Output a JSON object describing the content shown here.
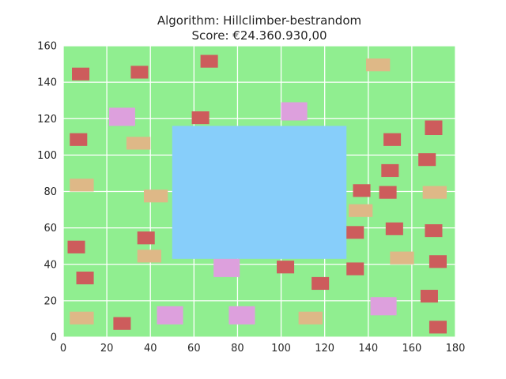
{
  "chart_data": {
    "type": "scatter",
    "title": "Algorithm: Hillclimber-bestrandom",
    "subtitle": "Score: €24.360.930,00",
    "xlabel": "",
    "ylabel": "",
    "xlim": [
      0,
      180
    ],
    "ylim": [
      0,
      160
    ],
    "xticks": [
      0,
      20,
      40,
      60,
      80,
      100,
      120,
      140,
      160,
      180
    ],
    "yticks": [
      0,
      20,
      40,
      60,
      80,
      100,
      120,
      140,
      160
    ],
    "grid": true,
    "colors": {
      "background": "#90EE90",
      "water": "#87CEFA",
      "red": "#CD5C5C",
      "tan": "#DEB887",
      "pink": "#DDA0DD"
    },
    "water": [
      {
        "x0": 50,
        "y0": 43,
        "x1": 130,
        "y1": 116
      }
    ],
    "houses": [
      {
        "type": "red",
        "x0": 4,
        "y0": 141,
        "x1": 12,
        "y1": 148
      },
      {
        "type": "red",
        "x0": 31,
        "y0": 142,
        "x1": 39,
        "y1": 149
      },
      {
        "type": "red",
        "x0": 63,
        "y0": 148,
        "x1": 71,
        "y1": 155
      },
      {
        "type": "tan",
        "x0": 139,
        "y0": 146,
        "x1": 150,
        "y1": 153
      },
      {
        "type": "pink",
        "x0": 21,
        "y0": 116,
        "x1": 33,
        "y1": 126
      },
      {
        "type": "red",
        "x0": 59,
        "y0": 117,
        "x1": 67,
        "y1": 124
      },
      {
        "type": "pink",
        "x0": 100,
        "y0": 119,
        "x1": 112,
        "y1": 129
      },
      {
        "type": "red",
        "x0": 166,
        "y0": 111,
        "x1": 174,
        "y1": 119
      },
      {
        "type": "red",
        "x0": 3,
        "y0": 105,
        "x1": 11,
        "y1": 112
      },
      {
        "type": "tan",
        "x0": 29,
        "y0": 103,
        "x1": 40,
        "y1": 110
      },
      {
        "type": "red",
        "x0": 147,
        "y0": 105,
        "x1": 155,
        "y1": 112
      },
      {
        "type": "red",
        "x0": 163,
        "y0": 94,
        "x1": 171,
        "y1": 101
      },
      {
        "type": "red",
        "x0": 146,
        "y0": 88,
        "x1": 154,
        "y1": 95
      },
      {
        "type": "tan",
        "x0": 3,
        "y0": 80,
        "x1": 14,
        "y1": 87
      },
      {
        "type": "red",
        "x0": 133,
        "y0": 77,
        "x1": 141,
        "y1": 84
      },
      {
        "type": "red",
        "x0": 145,
        "y0": 76,
        "x1": 153,
        "y1": 83
      },
      {
        "type": "tan",
        "x0": 165,
        "y0": 76,
        "x1": 176,
        "y1": 83
      },
      {
        "type": "tan",
        "x0": 37,
        "y0": 74,
        "x1": 48,
        "y1": 81
      },
      {
        "type": "tan",
        "x0": 131,
        "y0": 66,
        "x1": 142,
        "y1": 73
      },
      {
        "type": "red",
        "x0": 130,
        "y0": 54,
        "x1": 138,
        "y1": 61
      },
      {
        "type": "red",
        "x0": 148,
        "y0": 56,
        "x1": 156,
        "y1": 63
      },
      {
        "type": "red",
        "x0": 166,
        "y0": 55,
        "x1": 174,
        "y1": 62
      },
      {
        "type": "red",
        "x0": 34,
        "y0": 51,
        "x1": 42,
        "y1": 58
      },
      {
        "type": "red",
        "x0": 2,
        "y0": 46,
        "x1": 10,
        "y1": 53
      },
      {
        "type": "tan",
        "x0": 34,
        "y0": 41,
        "x1": 45,
        "y1": 48
      },
      {
        "type": "tan",
        "x0": 150,
        "y0": 40,
        "x1": 161,
        "y1": 47
      },
      {
        "type": "red",
        "x0": 168,
        "y0": 38,
        "x1": 176,
        "y1": 45
      },
      {
        "type": "pink",
        "x0": 69,
        "y0": 33,
        "x1": 81,
        "y1": 43
      },
      {
        "type": "red",
        "x0": 98,
        "y0": 35,
        "x1": 106,
        "y1": 42
      },
      {
        "type": "red",
        "x0": 130,
        "y0": 34,
        "x1": 138,
        "y1": 41
      },
      {
        "type": "red",
        "x0": 6,
        "y0": 29,
        "x1": 14,
        "y1": 36
      },
      {
        "type": "red",
        "x0": 114,
        "y0": 26,
        "x1": 122,
        "y1": 33
      },
      {
        "type": "red",
        "x0": 164,
        "y0": 19,
        "x1": 172,
        "y1": 26
      },
      {
        "type": "pink",
        "x0": 141,
        "y0": 12,
        "x1": 153,
        "y1": 22
      },
      {
        "type": "tan",
        "x0": 3,
        "y0": 7,
        "x1": 14,
        "y1": 14
      },
      {
        "type": "red",
        "x0": 23,
        "y0": 4,
        "x1": 31,
        "y1": 11
      },
      {
        "type": "pink",
        "x0": 43,
        "y0": 7,
        "x1": 55,
        "y1": 17
      },
      {
        "type": "pink",
        "x0": 76,
        "y0": 7,
        "x1": 88,
        "y1": 17
      },
      {
        "type": "tan",
        "x0": 108,
        "y0": 7,
        "x1": 119,
        "y1": 14
      },
      {
        "type": "red",
        "x0": 168,
        "y0": 2,
        "x1": 176,
        "y1": 9
      }
    ]
  }
}
